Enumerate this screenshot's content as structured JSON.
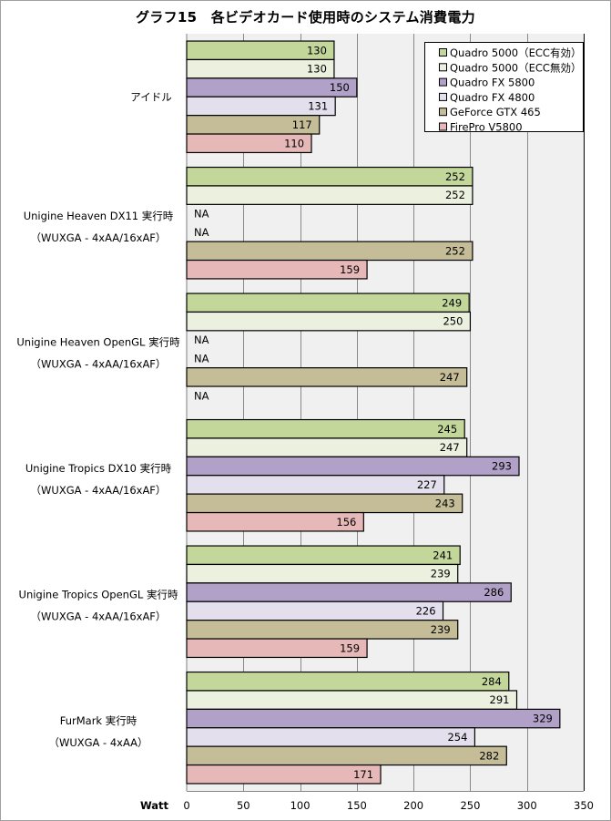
{
  "chart_data": {
    "type": "bar",
    "orientation": "horizontal",
    "title": "グラフ15　各ビデオカード使用時のシステム消費電力",
    "xlabel": "Watt",
    "ylabel": "",
    "xlim": [
      0,
      350
    ],
    "xticks": [
      0,
      50,
      100,
      150,
      200,
      250,
      300,
      350
    ],
    "grid": true,
    "legend_position": "top-right",
    "categories": [
      {
        "line1": "アイドル",
        "line2": ""
      },
      {
        "line1": "Unigine Heaven DX11 実行時",
        "line2": "（WUXGA - 4xAA/16xAF）"
      },
      {
        "line1": "Unigine Heaven OpenGL 実行時",
        "line2": "（WUXGA - 4xAA/16xAF）"
      },
      {
        "line1": "Unigine Tropics DX10 実行時",
        "line2": "（WUXGA - 4xAA/16xAF）"
      },
      {
        "line1": "Unigine Tropics OpenGL 実行時",
        "line2": "（WUXGA - 4xAA/16xAF）"
      },
      {
        "line1": "FurMark 実行時",
        "line2": "（WUXGA - 4xAA）"
      }
    ],
    "na_label": "NA",
    "series": [
      {
        "name": "Quadro 5000（ECC有効）",
        "color": "#c4d79b",
        "values": [
          130,
          252,
          249,
          245,
          241,
          284
        ]
      },
      {
        "name": "Quadro 5000（ECC無効）",
        "color": "#ebf1de",
        "values": [
          130,
          252,
          250,
          247,
          239,
          291
        ]
      },
      {
        "name": "Quadro FX 5800",
        "color": "#b1a0c7",
        "values": [
          150,
          null,
          null,
          293,
          286,
          329
        ]
      },
      {
        "name": "Quadro FX 4800",
        "color": "#e4dfec",
        "values": [
          131,
          null,
          null,
          227,
          226,
          254
        ]
      },
      {
        "name": "GeForce GTX 465",
        "color": "#c4bd97",
        "values": [
          117,
          252,
          247,
          243,
          239,
          282
        ]
      },
      {
        "name": "FirePro V5800",
        "color": "#e6b8b7",
        "values": [
          110,
          159,
          null,
          156,
          159,
          171
        ]
      }
    ]
  }
}
